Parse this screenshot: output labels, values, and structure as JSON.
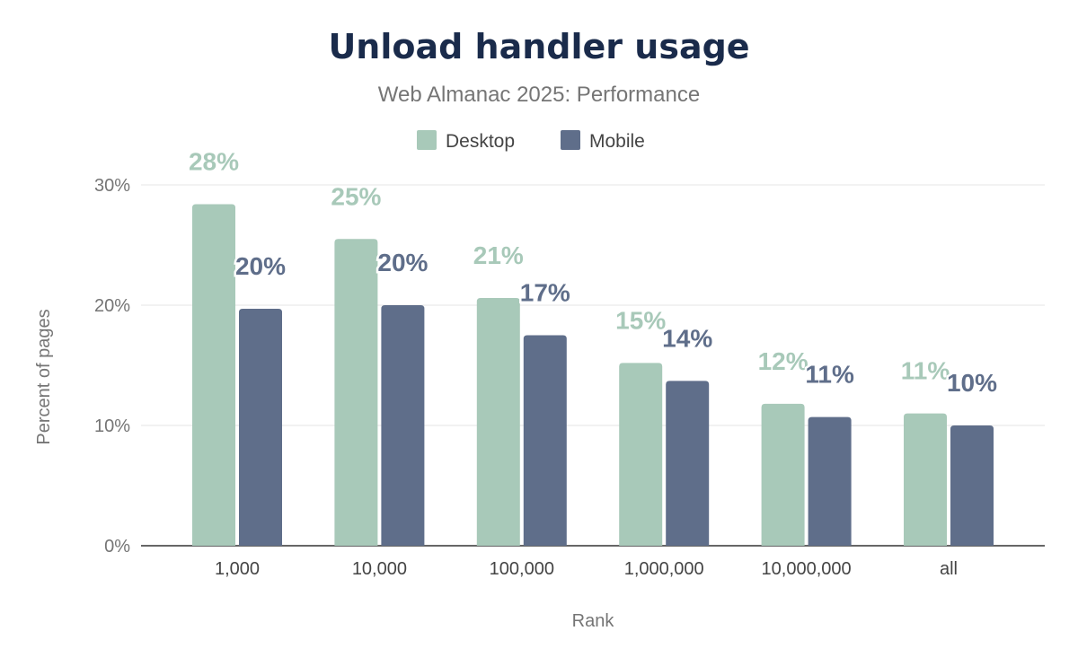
{
  "chart_data": {
    "type": "bar",
    "title": "Unload handler usage",
    "subtitle": "Web Almanac 2025: Performance",
    "xlabel": "Rank",
    "ylabel": "Percent of pages",
    "categories": [
      "1,000",
      "10,000",
      "100,000",
      "1,000,000",
      "10,000,000",
      "all"
    ],
    "ylim": [
      0,
      30
    ],
    "yticks": [
      "0%",
      "10%",
      "20%",
      "30%"
    ],
    "grid": true,
    "legend_position": "top",
    "series": [
      {
        "name": "Desktop",
        "color": "#a8c9b9",
        "values": [
          28.4,
          25.5,
          20.6,
          15.2,
          11.8,
          11.0
        ],
        "labels": [
          "28%",
          "25%",
          "21%",
          "15%",
          "12%",
          "11%"
        ]
      },
      {
        "name": "Mobile",
        "color": "#5f6e8a",
        "values": [
          19.7,
          20.0,
          17.5,
          13.7,
          10.7,
          10.0
        ],
        "labels": [
          "20%",
          "20%",
          "17%",
          "14%",
          "11%",
          "10%"
        ]
      }
    ]
  }
}
